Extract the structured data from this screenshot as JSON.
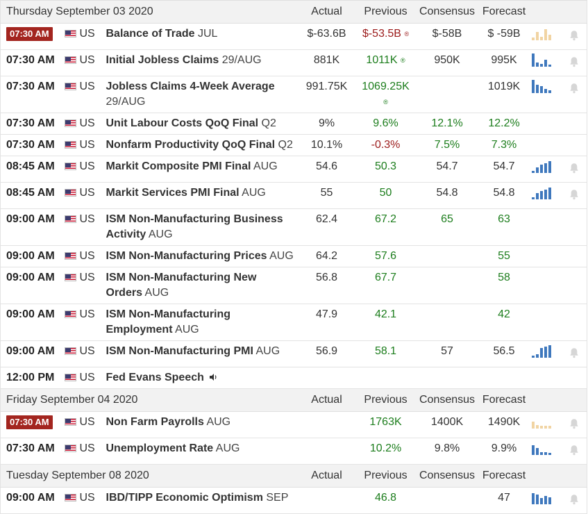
{
  "columns": {
    "actual": "Actual",
    "previous": "Previous",
    "consensus": "Consensus",
    "forecast": "Forecast"
  },
  "days": [
    {
      "date": "Thursday September 03 2020",
      "events": [
        {
          "time": "07:30 AM",
          "badge": true,
          "country": "US",
          "name": "Balance of Trade",
          "period": "JUL",
          "actual": "$-63.6B",
          "previous": "$-53.5B",
          "previous_color": "red",
          "revised": true,
          "consensus": "$-58B",
          "forecast": "$ -59B",
          "chart": "amber-mixed",
          "bell": true
        },
        {
          "time": "07:30 AM",
          "badge": false,
          "country": "US",
          "name": "Initial Jobless Claims",
          "period": "29/AUG",
          "actual": "881K",
          "previous": "1011K",
          "previous_color": "green",
          "revised": true,
          "consensus": "950K",
          "forecast": "995K",
          "chart": "blue",
          "bell": true
        },
        {
          "time": "07:30 AM",
          "badge": false,
          "country": "US",
          "name": "Jobless Claims 4-Week Average",
          "period": "29/AUG",
          "actual": "991.75K",
          "previous": "1069.25K",
          "previous_color": "green",
          "revised": true,
          "revised_wrap": true,
          "consensus": "",
          "forecast": "1019K",
          "chart": "blue",
          "bell": true
        },
        {
          "time": "07:30 AM",
          "badge": false,
          "country": "US",
          "name": "Unit Labour Costs QoQ Final",
          "period": "Q2",
          "actual": "9%",
          "previous": "9.6%",
          "previous_color": "green",
          "consensus": "12.1%",
          "consensus_color": "green",
          "forecast": "12.2%",
          "forecast_color": "green",
          "chart": "",
          "bell": false
        },
        {
          "time": "07:30 AM",
          "badge": false,
          "country": "US",
          "name": "Nonfarm Productivity QoQ Final",
          "period": "Q2",
          "actual": "10.1%",
          "previous": "-0.3%",
          "previous_color": "red",
          "consensus": "7.5%",
          "consensus_color": "green",
          "forecast": "7.3%",
          "forecast_color": "green",
          "chart": "",
          "bell": false
        },
        {
          "time": "08:45 AM",
          "badge": false,
          "country": "US",
          "name": "Markit Composite PMI Final",
          "period": "AUG",
          "actual": "54.6",
          "previous": "50.3",
          "previous_color": "green",
          "consensus": "54.7",
          "forecast": "54.7",
          "chart": "blue",
          "bell": true
        },
        {
          "time": "08:45 AM",
          "badge": false,
          "country": "US",
          "name": "Markit Services PMI Final",
          "period": "AUG",
          "actual": "55",
          "previous": "50",
          "previous_color": "green",
          "consensus": "54.8",
          "forecast": "54.8",
          "chart": "blue",
          "bell": true
        },
        {
          "time": "09:00 AM",
          "badge": false,
          "country": "US",
          "name": "ISM Non-Manufacturing Business Activity",
          "period": "AUG",
          "actual": "62.4",
          "previous": "67.2",
          "previous_color": "green",
          "consensus": "65",
          "consensus_color": "green",
          "forecast": "63",
          "forecast_color": "green",
          "chart": "",
          "bell": false
        },
        {
          "time": "09:00 AM",
          "badge": false,
          "country": "US",
          "name": "ISM Non-Manufacturing Prices",
          "period": "AUG",
          "actual": "64.2",
          "previous": "57.6",
          "previous_color": "green",
          "consensus": "",
          "forecast": "55",
          "forecast_color": "green",
          "chart": "",
          "bell": false
        },
        {
          "time": "09:00 AM",
          "badge": false,
          "country": "US",
          "name": "ISM Non-Manufacturing New Orders",
          "period": "AUG",
          "actual": "56.8",
          "previous": "67.7",
          "previous_color": "green",
          "consensus": "",
          "forecast": "58",
          "forecast_color": "green",
          "chart": "",
          "bell": false
        },
        {
          "time": "09:00 AM",
          "badge": false,
          "country": "US",
          "name": "ISM Non-Manufacturing Employment",
          "period": "AUG",
          "actual": "47.9",
          "previous": "42.1",
          "previous_color": "green",
          "consensus": "",
          "forecast": "42",
          "forecast_color": "green",
          "chart": "",
          "bell": false
        },
        {
          "time": "09:00 AM",
          "badge": false,
          "country": "US",
          "name": "ISM Non-Manufacturing PMI",
          "period": "AUG",
          "actual": "56.9",
          "previous": "58.1",
          "previous_color": "green",
          "consensus": "57",
          "forecast": "56.5",
          "chart": "blue",
          "bell": true
        },
        {
          "time": "12:00 PM",
          "badge": false,
          "country": "US",
          "name": "Fed Evans Speech",
          "period": "",
          "speaker": true,
          "actual": "",
          "previous": "",
          "consensus": "",
          "forecast": "",
          "chart": "",
          "bell": false
        }
      ]
    },
    {
      "date": "Friday September 04 2020",
      "events": [
        {
          "time": "07:30 AM",
          "badge": true,
          "country": "US",
          "name": "Non Farm Payrolls",
          "period": "AUG",
          "actual": "",
          "previous": "1763K",
          "previous_color": "green",
          "consensus": "1400K",
          "forecast": "1490K",
          "chart": "amber-mixed2",
          "bell": true
        },
        {
          "time": "07:30 AM",
          "badge": false,
          "country": "US",
          "name": "Unemployment Rate",
          "period": "AUG",
          "actual": "",
          "previous": "10.2%",
          "previous_color": "green",
          "consensus": "9.8%",
          "forecast": "9.9%",
          "chart": "blue",
          "bell": true
        }
      ]
    },
    {
      "date": "Tuesday September 08 2020",
      "events": [
        {
          "time": "09:00 AM",
          "badge": false,
          "country": "US",
          "name": "IBD/TIPP Economic Optimism",
          "period": "SEP",
          "actual": "",
          "previous": "46.8",
          "previous_color": "green",
          "consensus": "",
          "forecast": "47",
          "chart": "blue",
          "bell": true
        }
      ]
    }
  ],
  "revised_mark": "®",
  "colors": {
    "badge": "#a3251f",
    "green": "#1c7d1c",
    "red": "#9b1a1a",
    "bar_blue": "#3f78bd",
    "bar_amber": "#f1d4a3"
  },
  "icons": {
    "flag": "us-flag-icon",
    "bell": "bell-icon",
    "chart": "sparkline-icon",
    "speaker": "speaker-icon"
  }
}
